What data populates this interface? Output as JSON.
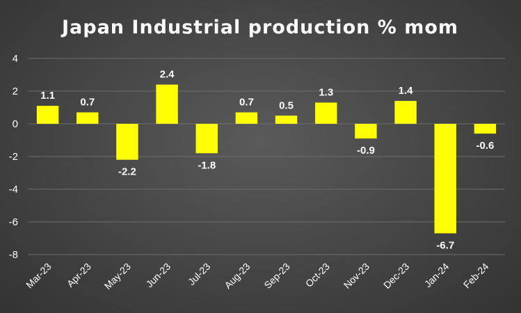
{
  "chart_data": {
    "type": "bar",
    "title": "Japan Industrial production % mom",
    "xlabel": "",
    "ylabel": "",
    "categories": [
      "Mar-23",
      "Apr-23",
      "May-23",
      "Jun-23",
      "Jul-23",
      "Aug-23",
      "Sep-23",
      "Oct-23",
      "Nov-23",
      "Dec-23",
      "Jan-24",
      "Feb-24"
    ],
    "values": [
      1.1,
      0.7,
      -2.2,
      2.4,
      -1.8,
      0.7,
      0.5,
      1.3,
      -0.9,
      1.4,
      -6.7,
      -0.6
    ],
    "value_labels": [
      "1.1",
      "0.7",
      "-2.2",
      "2.4",
      "-1.8",
      "0.7",
      "0.5",
      "1.3",
      "-0.9",
      "1.4",
      "-6.7",
      "-0.6"
    ],
    "ylim": [
      -8,
      4
    ],
    "yticks": [
      4,
      2,
      0,
      -2,
      -4,
      -6,
      -8
    ],
    "grid": true,
    "legend": "none",
    "colors": {
      "bar": "#FFFF00",
      "text": "#FFFFFF",
      "grid": "#6E6E6E",
      "background": "#444444"
    }
  }
}
